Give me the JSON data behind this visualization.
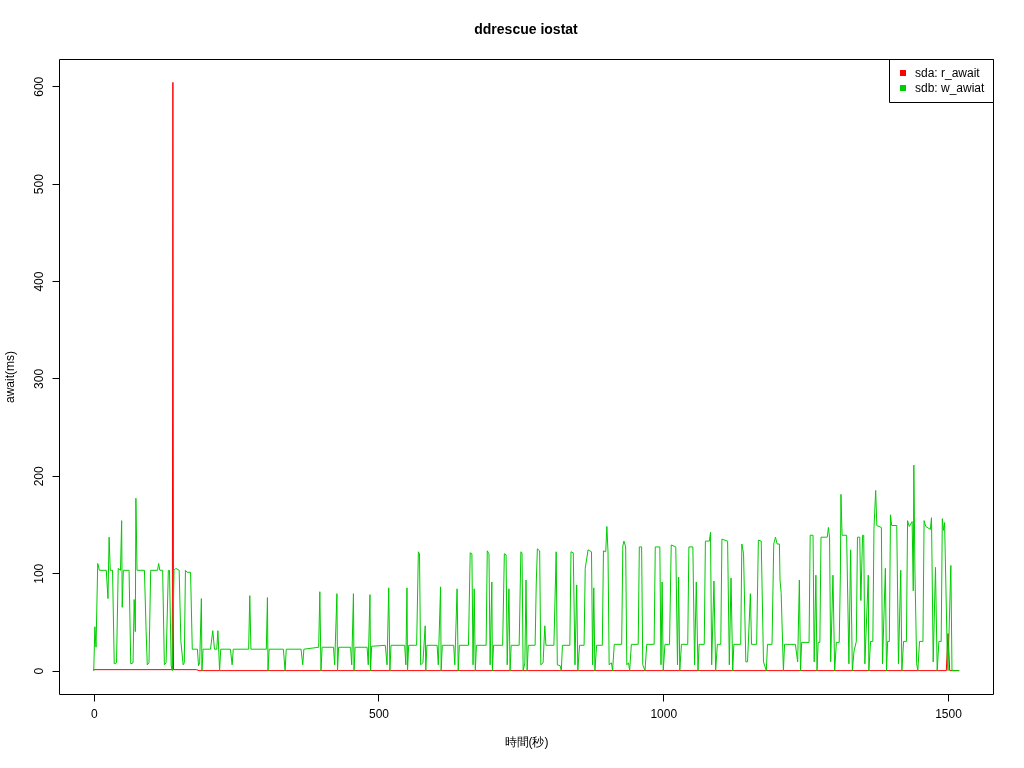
{
  "chart_data": {
    "type": "line",
    "title": "ddrescue iostat",
    "xlabel": "時間(秒)",
    "ylabel": "await(ms)",
    "xlim": [
      -61,
      1579
    ],
    "ylim": [
      -24,
      628
    ],
    "xticks": [
      0,
      500,
      1000,
      1500
    ],
    "yticks": [
      0,
      100,
      200,
      300,
      400,
      500,
      600
    ],
    "legend": "top right",
    "series": [
      {
        "name": "sda: r_await",
        "color": "#ff0000",
        "x": [
          0,
          138,
          139,
          140,
          180,
          185,
          1497,
          1500,
          1503,
          1519
        ],
        "values": [
          1,
          1,
          604,
          1,
          1,
          0,
          0,
          38,
          0,
          0
        ]
      },
      {
        "name": "sdb: w_awiat",
        "color": "#00cd00",
        "x": [
          0,
          2,
          4,
          7,
          10,
          22,
          25,
          27,
          29,
          33,
          36,
          40,
          43,
          47,
          49,
          50,
          52,
          62,
          65,
          69,
          71,
          73,
          74,
          76,
          89,
          92,
          94,
          97,
          100,
          112,
          114,
          116,
          121,
          124,
          127,
          131,
          133,
          136,
          138,
          141,
          144,
          150,
          153,
          157,
          159,
          161,
          164,
          170,
          173,
          182,
          184,
          186,
          189,
          190,
          192,
          205,
          209,
          212,
          216,
          218,
          221,
          223,
          240,
          243,
          245,
          272,
          274,
          276,
          303,
          305,
          306,
          308,
          333,
          336,
          338,
          364,
          367,
          369,
          395,
          397,
          399,
          401,
          421,
          423,
          427,
          428,
          430,
          451,
          453,
          456,
          457,
          459,
          480,
          482,
          485,
          486,
          488,
          512,
          515,
          518,
          520,
          522,
          546,
          548,
          550,
          551,
          553,
          567,
          570,
          572,
          574,
          578,
          582,
          583,
          585,
          603,
          605,
          609,
          610,
          612,
          632,
          634,
          638,
          640,
          642,
          658,
          661,
          664,
          666,
          668,
          670,
          672,
          689,
          691,
          694,
          696,
          699,
          700,
          702,
          718,
          721,
          724,
          726,
          729,
          731,
          733,
          747,
          750,
          752,
          754,
          757,
          759,
          761,
          763,
          775,
          777,
          779,
          783,
          785,
          789,
          792,
          794,
          808,
          812,
          814,
          819,
          821,
          823,
          836,
          838,
          842,
          845,
          848,
          850,
          853,
          861,
          863,
          868,
          874,
          876,
          878,
          880,
          883,
          893,
          895,
          899,
          901,
          903,
          905,
          909,
          911,
          914,
          927,
          929,
          931,
          934,
          936,
          939,
          941,
          944,
          956,
          958,
          962,
          964,
          968,
          971,
          984,
          986,
          994,
          996,
          998,
          1000,
          1003,
          1011,
          1014,
          1022,
          1025,
          1027,
          1029,
          1032,
          1043,
          1045,
          1052,
          1055,
          1058,
          1061,
          1063,
          1072,
          1074,
          1081,
          1083,
          1085,
          1089,
          1092,
          1095,
          1101,
          1103,
          1113,
          1116,
          1119,
          1122,
          1124,
          1136,
          1138,
          1141,
          1145,
          1148,
          1153,
          1155,
          1164,
          1167,
          1172,
          1176,
          1181,
          1183,
          1191,
          1194,
          1197,
          1200,
          1204,
          1205,
          1207,
          1211,
          1213,
          1232,
          1236,
          1239,
          1241,
          1243,
          1256,
          1258,
          1263,
          1265,
          1268,
          1270,
          1272,
          1275,
          1277,
          1288,
          1290,
          1292,
          1294,
          1298,
          1301,
          1304,
          1309,
          1311,
          1312,
          1314,
          1322,
          1326,
          1329,
          1332,
          1335,
          1339,
          1341,
          1345,
          1347,
          1350,
          1352,
          1354,
          1360,
          1361,
          1364,
          1368,
          1370,
          1373,
          1375,
          1383,
          1385,
          1390,
          1392,
          1394,
          1397,
          1399,
          1401,
          1410,
          1413,
          1417,
          1419,
          1422,
          1427,
          1429,
          1432,
          1437,
          1439,
          1440,
          1442,
          1445,
          1447,
          1450,
          1456,
          1458,
          1461,
          1469,
          1471,
          1474,
          1478,
          1481,
          1484,
          1488,
          1490,
          1492,
          1494,
          1499,
          1500,
          1505,
          1507,
          1519
        ],
        "values": [
          0,
          45,
          24,
          110,
          103,
          103,
          74,
          137,
          103,
          103,
          7,
          8,
          105,
          103,
          154,
          65,
          103,
          103,
          7,
          8,
          73,
          40,
          177,
          103,
          103,
          40,
          6,
          8,
          103,
          103,
          110,
          103,
          103,
          6,
          8,
          103,
          103,
          5,
          0,
          103,
          105,
          103,
          30,
          6,
          8,
          103,
          101,
          101,
          22,
          22,
          5,
          8,
          74,
          0,
          22,
          22,
          41,
          22,
          22,
          41,
          0,
          22,
          22,
          6,
          22,
          22,
          77,
          22,
          22,
          75,
          0,
          22,
          22,
          0,
          22,
          22,
          6,
          22,
          24,
          81,
          0,
          24,
          24,
          6,
          79,
          0,
          24,
          24,
          6,
          79,
          0,
          24,
          24,
          6,
          78,
          0,
          25,
          26,
          6,
          85,
          0,
          26,
          26,
          6,
          85,
          0,
          26,
          26,
          122,
          120,
          6,
          8,
          46,
          0,
          26,
          26,
          6,
          86,
          0,
          26,
          26,
          6,
          84,
          0,
          26,
          26,
          121,
          120,
          6,
          84,
          0,
          26,
          26,
          123,
          120,
          6,
          91,
          0,
          26,
          26,
          120,
          119,
          6,
          84,
          0,
          26,
          26,
          122,
          121,
          0,
          8,
          93,
          0,
          26,
          26,
          90,
          125,
          123,
          6,
          8,
          46,
          26,
          26,
          122,
          6,
          5,
          0,
          26,
          26,
          122,
          121,
          6,
          88,
          0,
          26,
          26,
          105,
          124,
          122,
          6,
          85,
          0,
          26,
          26,
          123,
          122,
          148,
          122,
          6,
          8,
          0,
          27,
          27,
          128,
          133,
          127,
          6,
          8,
          0,
          27,
          27,
          127,
          127,
          6,
          0,
          27,
          27,
          127,
          127,
          6,
          91,
          0,
          27,
          27,
          129,
          127,
          6,
          96,
          0,
          27,
          27,
          127,
          127,
          6,
          91,
          0,
          27,
          27,
          133,
          133,
          142,
          6,
          92,
          0,
          27,
          27,
          135,
          133,
          6,
          95,
          0,
          27,
          27,
          130,
          120,
          9,
          9,
          79,
          27,
          27,
          134,
          133,
          9,
          0,
          27,
          27,
          130,
          137,
          130,
          130,
          93,
          80,
          0,
          27,
          27,
          9,
          93,
          0,
          29,
          29,
          139,
          139,
          9,
          98,
          0,
          29,
          29,
          137,
          137,
          147,
          137,
          9,
          98,
          0,
          29,
          29,
          98,
          181,
          139,
          139,
          7,
          124,
          0,
          20,
          30,
          137,
          137,
          72,
          139,
          139,
          7,
          98,
          0,
          30,
          30,
          146,
          185,
          149,
          147,
          7,
          105,
          0,
          30,
          30,
          160,
          149,
          149,
          7,
          103,
          0,
          30,
          30,
          154,
          148,
          153,
          82,
          211,
          100,
          7,
          0,
          30,
          30,
          154,
          148,
          145,
          157,
          9,
          106,
          0,
          30,
          30,
          156,
          144,
          152,
          8,
          0,
          108,
          0,
          0
        ]
      }
    ]
  }
}
